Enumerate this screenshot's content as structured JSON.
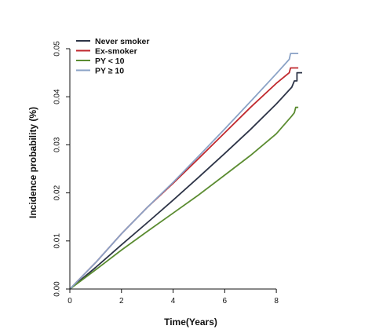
{
  "chart_data": {
    "type": "line",
    "xlabel": "Time(Years)",
    "ylabel": "Incidence probability (%)",
    "xlim": [
      0,
      9
    ],
    "ylim": [
      0,
      0.05
    ],
    "x_ticks": [
      "0",
      "2",
      "4",
      "6",
      "8"
    ],
    "y_ticks": [
      "0.00",
      "0.01",
      "0.02",
      "0.03",
      "0.04",
      "0.05"
    ],
    "grid": false,
    "legend_position": "top-left",
    "series": [
      {
        "name": "Never smoker",
        "color": "#2d3447",
        "points": [
          [
            0,
            0
          ],
          [
            1,
            0.0045
          ],
          [
            2,
            0.0092
          ],
          [
            3,
            0.0138
          ],
          [
            4,
            0.0185
          ],
          [
            5,
            0.0233
          ],
          [
            6,
            0.0282
          ],
          [
            7,
            0.0332
          ],
          [
            8,
            0.0385
          ],
          [
            8.6,
            0.042
          ],
          [
            8.7,
            0.0433
          ],
          [
            8.8,
            0.0433
          ],
          [
            8.8,
            0.045
          ],
          [
            9,
            0.045
          ]
        ]
      },
      {
        "name": "Ex-smoker",
        "color": "#c0282d",
        "points": [
          [
            0,
            0
          ],
          [
            1,
            0.0055
          ],
          [
            2,
            0.0115
          ],
          [
            3,
            0.017
          ],
          [
            4,
            0.022
          ],
          [
            5,
            0.0272
          ],
          [
            6,
            0.0325
          ],
          [
            7,
            0.0378
          ],
          [
            8,
            0.0428
          ],
          [
            8.5,
            0.045
          ],
          [
            8.55,
            0.046
          ],
          [
            8.85,
            0.046
          ]
        ]
      },
      {
        "name": "PY < 10",
        "color": "#5b8c31",
        "points": [
          [
            0,
            0
          ],
          [
            1,
            0.004
          ],
          [
            2,
            0.0081
          ],
          [
            3,
            0.012
          ],
          [
            4,
            0.0158
          ],
          [
            5,
            0.0196
          ],
          [
            6,
            0.0237
          ],
          [
            7,
            0.0278
          ],
          [
            8,
            0.0323
          ],
          [
            8.6,
            0.036
          ],
          [
            8.7,
            0.0367
          ],
          [
            8.75,
            0.0378
          ],
          [
            8.85,
            0.0378
          ]
        ]
      },
      {
        "name": "PY ≥ 10",
        "color": "#8aa2c6",
        "points": [
          [
            0,
            0
          ],
          [
            1,
            0.0055
          ],
          [
            2,
            0.0115
          ],
          [
            3,
            0.017
          ],
          [
            4,
            0.0222
          ],
          [
            5,
            0.0277
          ],
          [
            6,
            0.0333
          ],
          [
            7,
            0.039
          ],
          [
            8,
            0.0448
          ],
          [
            8.5,
            0.0478
          ],
          [
            8.55,
            0.049
          ],
          [
            8.85,
            0.049
          ]
        ]
      }
    ]
  }
}
